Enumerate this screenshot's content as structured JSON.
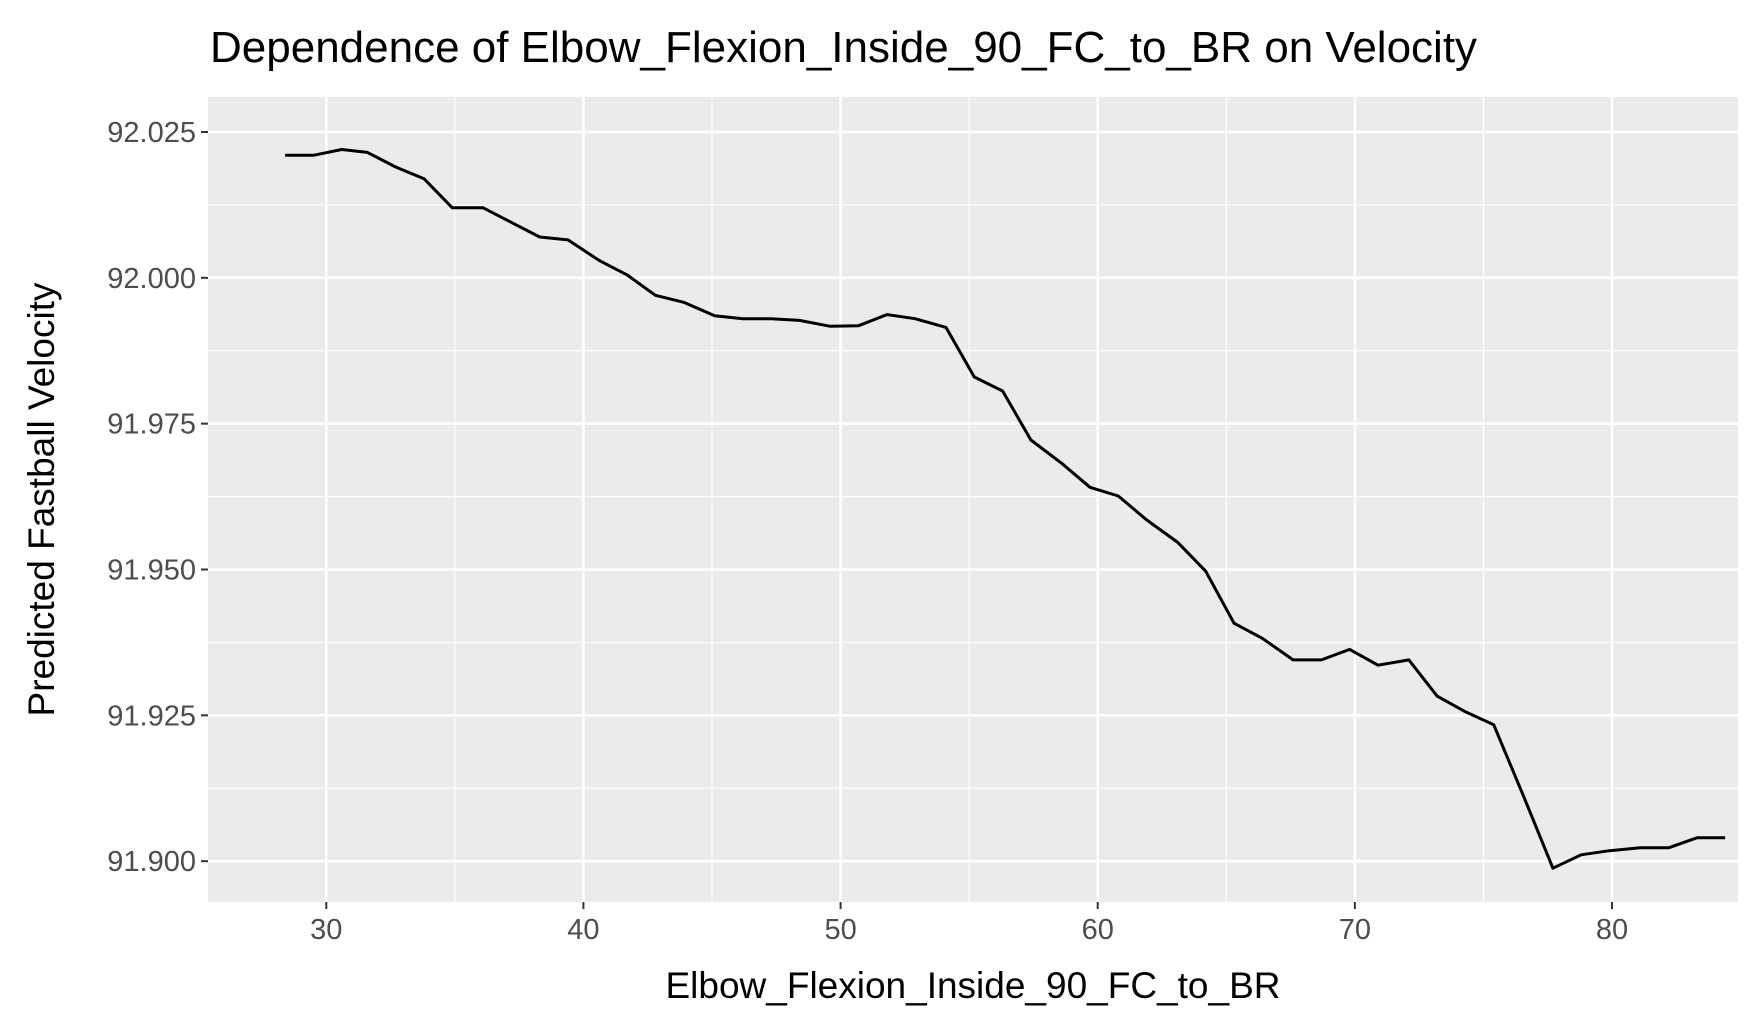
{
  "chart_data": {
    "type": "line",
    "title": "Dependence of Elbow_Flexion_Inside_90_FC_to_BR on Velocity",
    "xlabel": "Elbow_Flexion_Inside_90_FC_to_BR",
    "ylabel": "Predicted Fastball Velocity",
    "xlim": [
      25.4,
      84.9
    ],
    "ylim": [
      91.893,
      92.031
    ],
    "xticks": [
      30,
      40,
      50,
      60,
      70,
      80
    ],
    "xtick_labels": [
      "30",
      "40",
      "50",
      "60",
      "70",
      "80"
    ],
    "yticks": [
      91.9,
      91.925,
      91.95,
      91.975,
      92.0,
      92.025
    ],
    "ytick_labels": [
      "91.900",
      "91.925",
      "91.950",
      "91.975",
      "92.000",
      "92.025"
    ],
    "grid": true,
    "legend": "none",
    "background_color": "#ebebeb",
    "grid_color": "#ffffff",
    "line_color": "#000000",
    "series": [
      {
        "x": [
          28.4,
          29.5,
          30.6,
          31.6,
          32.7,
          33.8,
          34.9,
          36.1,
          37.2,
          38.3,
          39.4,
          40.6,
          41.7,
          42.8,
          43.9,
          45.1,
          46.2,
          47.3,
          48.4,
          49.6,
          50.7,
          51.8,
          52.9,
          54.1,
          55.2,
          56.3,
          57.4,
          58.6,
          59.7,
          60.8,
          61.9,
          63.1,
          64.2,
          65.3,
          66.4,
          67.6,
          68.7,
          69.8,
          70.9,
          72.1,
          73.2,
          74.3,
          75.4,
          76.6,
          77.7,
          78.8,
          79.9,
          81.1,
          82.2,
          83.3,
          84.4
        ],
        "y": [
          92.021,
          92.021,
          92.022,
          92.0215,
          92.019,
          92.017,
          92.012,
          92.012,
          92.0095,
          92.007,
          92.0065,
          92.003,
          92.0005,
          91.997,
          91.9958,
          91.9935,
          91.993,
          91.993,
          91.9927,
          91.9917,
          91.9918,
          91.9937,
          91.993,
          91.9915,
          91.983,
          91.9806,
          91.9722,
          91.9682,
          91.9641,
          91.9626,
          91.9585,
          91.9547,
          91.9497,
          91.9408,
          91.9382,
          91.9345,
          91.9345,
          91.9363,
          91.9336,
          91.9345,
          91.9283,
          91.9256,
          91.9234,
          91.9107,
          91.8988,
          91.9011,
          91.9018,
          91.9023,
          91.9023,
          91.904,
          91.904
        ]
      }
    ]
  }
}
